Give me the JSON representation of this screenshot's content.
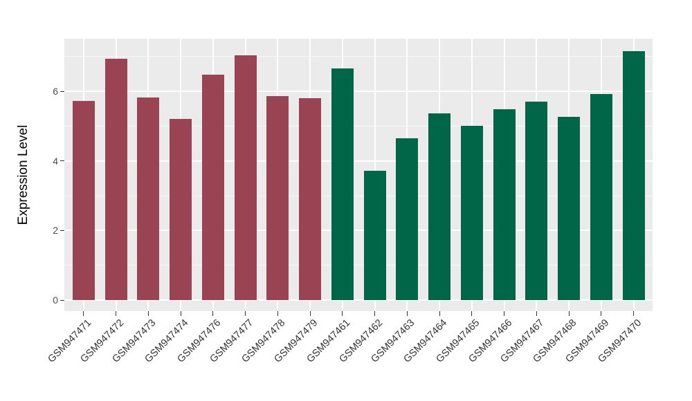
{
  "chart_data": {
    "type": "bar",
    "title": "",
    "ylabel": "Expression Level",
    "xlabel": "",
    "legend": "none",
    "grid": true,
    "ylim": [
      -0.32,
      7.51
    ],
    "y_ticks": [
      0,
      2,
      4,
      6
    ],
    "y_minor_ticks": [
      1,
      3,
      5,
      7
    ],
    "panel_bg": "#EBEBEB",
    "grid_major_color": "#FFFFFF",
    "grid_minor_color": "rgba(255,255,255,0.65)",
    "categories": [
      "GSM947471",
      "GSM947472",
      "GSM947473",
      "GSM947474",
      "GSM947476",
      "GSM947477",
      "GSM947478",
      "GSM947479",
      "GSM947461",
      "GSM947462",
      "GSM947463",
      "GSM947464",
      "GSM947465",
      "GSM947466",
      "GSM947467",
      "GSM947468",
      "GSM947469",
      "GSM947470"
    ],
    "values": [
      5.72,
      6.94,
      5.82,
      5.2,
      6.48,
      7.04,
      5.87,
      5.81,
      6.66,
      3.72,
      4.65,
      5.36,
      5.01,
      5.48,
      5.7,
      5.27,
      5.92,
      7.15
    ],
    "bar_groups": [
      "group1",
      "group1",
      "group1",
      "group1",
      "group1",
      "group1",
      "group1",
      "group1",
      "group2",
      "group2",
      "group2",
      "group2",
      "group2",
      "group2",
      "group2",
      "group2",
      "group2",
      "group2"
    ],
    "group_colors": {
      "group1": "#9A4453",
      "group2": "#006647"
    }
  }
}
